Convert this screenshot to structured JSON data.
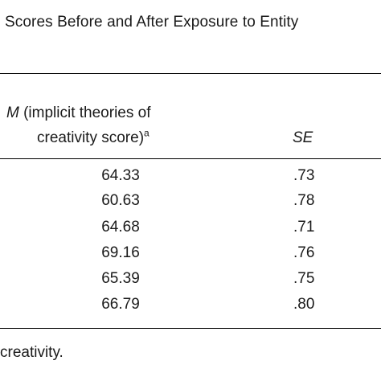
{
  "caption": "Scores Before and After Exposure to Entity",
  "header": {
    "m_symbol": "M",
    "m_line1_rest": " (implicit theories of",
    "m_line2": "creativity score)",
    "m_superscript": "a",
    "se_label": "SE"
  },
  "rows": [
    {
      "m": "64.33",
      "se": ".73"
    },
    {
      "m": "60.63",
      "se": ".78"
    },
    {
      "m": "64.68",
      "se": ".71"
    },
    {
      "m": "69.16",
      "se": ".76"
    },
    {
      "m": "65.39",
      "se": ".75"
    },
    {
      "m": "66.79",
      "se": ".80"
    }
  ],
  "footnote": "creativity."
}
